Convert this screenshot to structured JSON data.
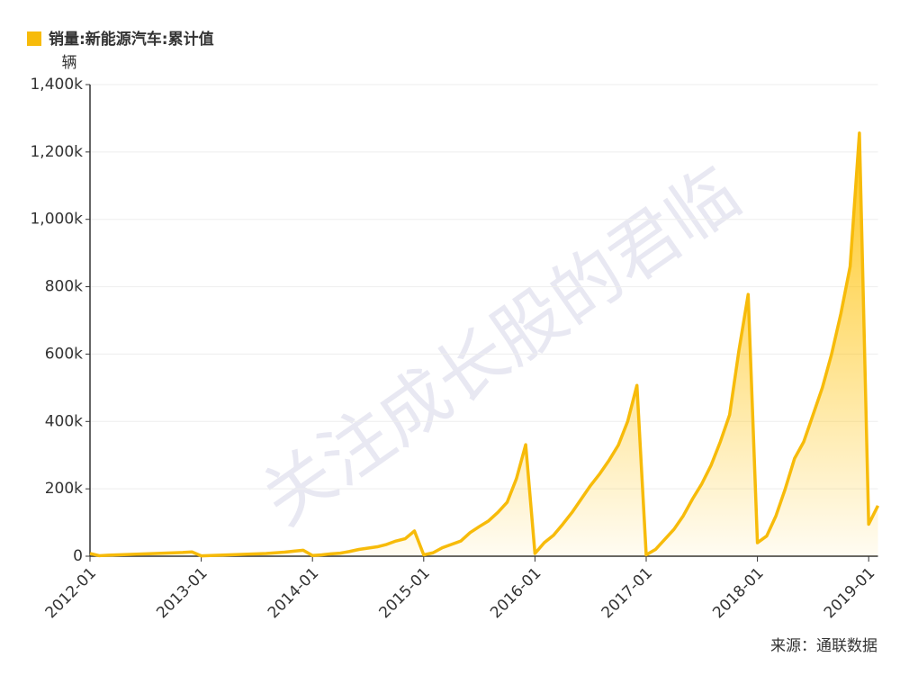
{
  "chart_data": {
    "type": "area",
    "legend": "销量:新能源汽车:累计值",
    "y_unit": "辆",
    "source": "来源：通联数据",
    "watermark": "关注成长股的君临",
    "categories": [
      "2012-01",
      null,
      null,
      null,
      null,
      null,
      null,
      null,
      null,
      null,
      null,
      null,
      "2013-01",
      null,
      null,
      null,
      null,
      null,
      null,
      null,
      null,
      null,
      null,
      null,
      "2014-01",
      null,
      null,
      null,
      null,
      null,
      null,
      null,
      null,
      null,
      null,
      null,
      "2015-01",
      null,
      null,
      null,
      null,
      null,
      null,
      null,
      null,
      null,
      null,
      null,
      "2016-01",
      null,
      null,
      null,
      null,
      null,
      null,
      null,
      null,
      null,
      null,
      null,
      "2017-01",
      null,
      null,
      null,
      null,
      null,
      null,
      null,
      null,
      null,
      null,
      null,
      "2018-01",
      null,
      null,
      null,
      null,
      null,
      null,
      null,
      null,
      null,
      null,
      null,
      "2019-01",
      null
    ],
    "series": [
      {
        "name": "销量:新能源汽车:累计值",
        "color": "#f7bb0a",
        "values": [
          8000,
          1500,
          3000,
          4000,
          5000,
          6000,
          7000,
          8000,
          9000,
          10000,
          11000,
          12800,
          1000,
          2000,
          3000,
          4000,
          5000,
          6000,
          7000,
          8000,
          10000,
          12000,
          15000,
          17600,
          2000,
          4000,
          7000,
          9000,
          14000,
          20000,
          24000,
          28000,
          35000,
          45000,
          52000,
          74800,
          4000,
          10000,
          25000,
          35000,
          45000,
          70000,
          88000,
          105000,
          130000,
          160000,
          230000,
          331000,
          8000,
          40000,
          62000,
          95000,
          130000,
          170000,
          210000,
          245000,
          285000,
          330000,
          400000,
          507000,
          4000,
          20000,
          50000,
          80000,
          120000,
          170000,
          215000,
          270000,
          340000,
          420000,
          610000,
          777000,
          40000,
          60000,
          120000,
          200000,
          290000,
          340000,
          420000,
          500000,
          600000,
          720000,
          860000,
          1256000,
          95000,
          150000
        ]
      }
    ],
    "ylim": [
      0,
      1400000
    ],
    "yticks": [
      0,
      {
        "value": 200000,
        "label": "200k"
      },
      {
        "value": 400000,
        "label": "400k"
      },
      {
        "value": 600000,
        "label": "600k"
      },
      {
        "value": 800000,
        "label": "800k"
      },
      {
        "value": 1000000,
        "label": "1,000k"
      },
      {
        "value": 1200000,
        "label": "1,200k"
      },
      {
        "value": 1400000,
        "label": "1,400k"
      }
    ],
    "grid": true
  }
}
